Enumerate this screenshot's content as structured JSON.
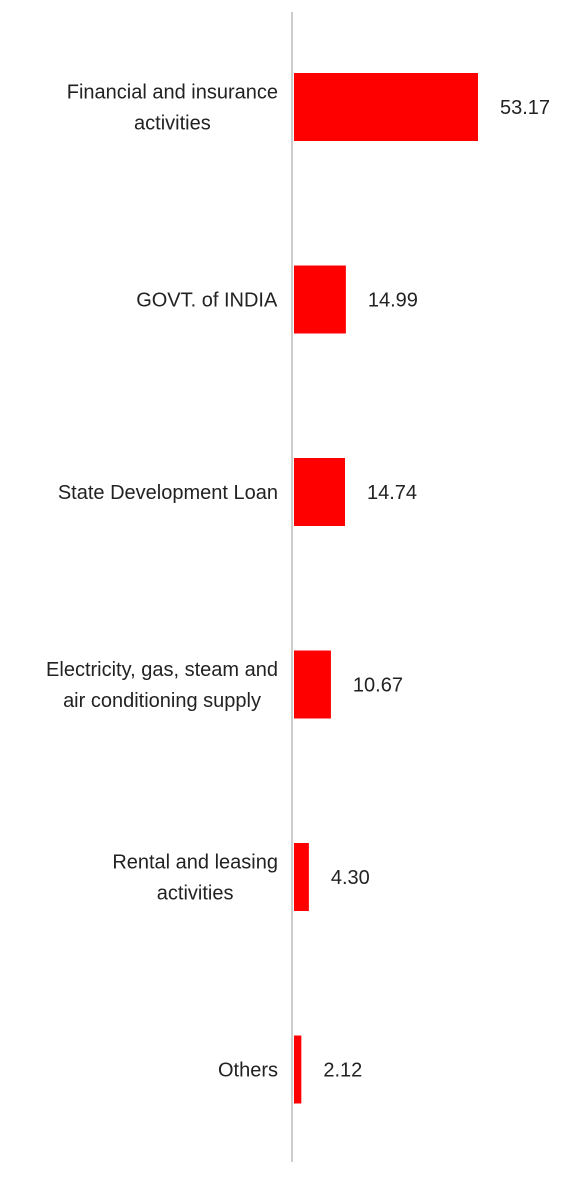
{
  "chart_data": {
    "type": "bar",
    "orientation": "horizontal",
    "categories": [
      [
        "Financial and insurance",
        "activities"
      ],
      [
        "GOVT. of INDIA"
      ],
      [
        "State Development Loan"
      ],
      [
        "Electricity, gas, steam and",
        "air conditioning supply"
      ],
      [
        "Rental and leasing",
        "activities"
      ],
      [
        "Others"
      ]
    ],
    "values": [
      53.17,
      14.99,
      14.74,
      10.67,
      4.3,
      2.12
    ],
    "value_labels": [
      "53.17",
      "14.99",
      "14.74",
      "10.67",
      "4.30",
      "2.12"
    ],
    "title": "",
    "xlabel": "",
    "ylabel": "",
    "xlim": [
      0,
      60
    ],
    "grid": false,
    "legend": "none",
    "bar_color": "#ff0000",
    "axis_color": "#cccccc"
  }
}
